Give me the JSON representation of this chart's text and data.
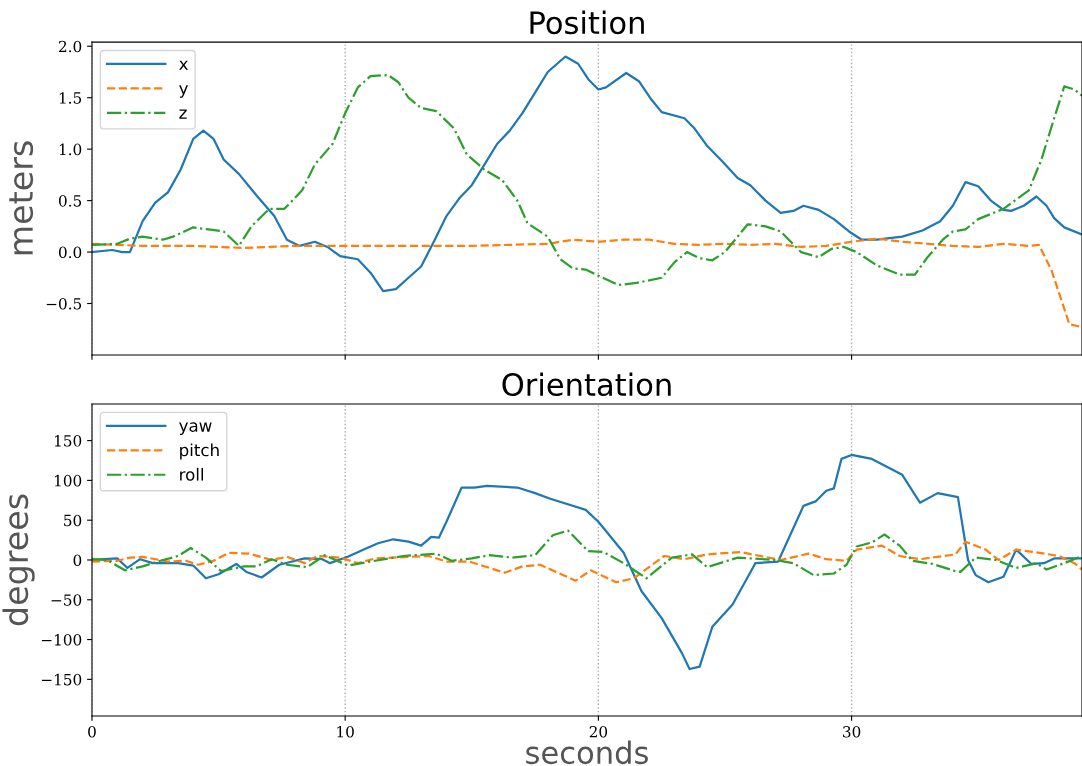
{
  "chart_data": [
    {
      "type": "line",
      "title": "Position",
      "ylabel": "meters",
      "xlim": [
        0,
        39.1
      ],
      "xticks": [
        0,
        10,
        20,
        30
      ],
      "ylim": [
        -1.0,
        2.04
      ],
      "yticks": [
        {
          "value": -0.5,
          "label": "−0.5"
        },
        {
          "value": 0,
          "label": "0.0"
        },
        {
          "value": 0.5,
          "label": "0.5"
        },
        {
          "value": 1,
          "label": "1.0"
        },
        {
          "value": 1.5,
          "label": "1.5"
        },
        {
          "value": 2,
          "label": "2.0"
        }
      ],
      "tick_labels": "y",
      "grid": "x",
      "legend": "top left",
      "marker": "none",
      "series": [
        {
          "name": "x",
          "color": "#1f77b4",
          "line_style": "solid",
          "x": [
            0,
            0.8,
            1.2,
            1.5,
            2,
            2.5,
            3,
            3.5,
            4,
            4.4,
            4.8,
            5.2,
            5.8,
            6.5,
            7.2,
            7.7,
            8.2,
            8.8,
            9.3,
            9.8,
            10.5,
            11,
            11.5,
            12,
            12.5,
            13,
            13.5,
            14,
            14.5,
            15,
            15.5,
            16,
            16.5,
            17,
            17.5,
            18,
            18.7,
            19.2,
            19.6,
            20,
            20.3,
            21.1,
            21.6,
            22.1,
            22.5,
            23.4,
            23.8,
            24.3,
            24.9,
            25.5,
            26,
            26.6,
            27.2,
            27.7,
            28.1,
            28.7,
            29.3,
            29.9,
            30.4,
            31,
            32,
            32.8,
            33.5,
            34,
            34.5,
            35,
            35.5,
            36,
            36.3,
            36.8,
            37.3,
            37.7,
            38,
            38.4,
            39.1
          ],
          "values": [
            0.0,
            0.02,
            0.0,
            0.0,
            0.3,
            0.48,
            0.58,
            0.8,
            1.1,
            1.18,
            1.1,
            0.9,
            0.76,
            0.55,
            0.35,
            0.12,
            0.06,
            0.1,
            0.05,
            -0.04,
            -0.07,
            -0.2,
            -0.38,
            -0.36,
            -0.25,
            -0.14,
            0.1,
            0.35,
            0.52,
            0.65,
            0.85,
            1.05,
            1.18,
            1.35,
            1.55,
            1.75,
            1.9,
            1.83,
            1.68,
            1.58,
            1.6,
            1.74,
            1.66,
            1.48,
            1.36,
            1.3,
            1.2,
            1.03,
            0.88,
            0.72,
            0.65,
            0.5,
            0.38,
            0.4,
            0.45,
            0.41,
            0.32,
            0.2,
            0.12,
            0.12,
            0.15,
            0.21,
            0.3,
            0.45,
            0.68,
            0.64,
            0.5,
            0.41,
            0.4,
            0.45,
            0.54,
            0.45,
            0.33,
            0.24,
            0.17
          ]
        },
        {
          "name": "y",
          "color": "#ff7f0e",
          "line_style": "dashed",
          "x": [
            0,
            1,
            2,
            4,
            5,
            6,
            8,
            12,
            15,
            18,
            19,
            20,
            21,
            22,
            23,
            24,
            25,
            26,
            27,
            28,
            29,
            30,
            31,
            32,
            33,
            34,
            35,
            36,
            37,
            37.4,
            37.9,
            38.6,
            39.1
          ],
          "values": [
            0.08,
            0.07,
            0.06,
            0.06,
            0.05,
            0.04,
            0.06,
            0.06,
            0.06,
            0.08,
            0.12,
            0.1,
            0.12,
            0.12,
            0.08,
            0.07,
            0.08,
            0.07,
            0.08,
            0.05,
            0.06,
            0.1,
            0.13,
            0.1,
            0.08,
            0.06,
            0.05,
            0.08,
            0.06,
            0.07,
            -0.18,
            -0.7,
            -0.73
          ]
        },
        {
          "name": "z",
          "color": "#2ca02c",
          "line_style": "dashdot",
          "x": [
            0,
            1,
            1.5,
            2,
            2.8,
            3.2,
            4,
            4.6,
            5.2,
            5.8,
            6.3,
            7,
            7.6,
            8.3,
            8.8,
            9.5,
            10,
            10.5,
            11,
            11.7,
            12.1,
            12.5,
            13,
            13.6,
            14.3,
            14.8,
            15.5,
            16.2,
            16.8,
            17.2,
            18,
            18.5,
            19,
            19.5,
            20,
            20.8,
            21.5,
            22.5,
            23,
            23.5,
            24,
            24.5,
            25,
            25.9,
            26.6,
            27.2,
            27.6,
            28,
            28.7,
            29.2,
            29.7,
            30.2,
            31,
            31.9,
            32.5,
            33,
            33.6,
            34,
            34.5,
            35,
            36,
            37,
            37.5,
            38,
            38.4,
            38.8,
            39.1
          ],
          "values": [
            0.07,
            0.08,
            0.13,
            0.15,
            0.12,
            0.15,
            0.24,
            0.22,
            0.2,
            0.06,
            0.25,
            0.42,
            0.42,
            0.6,
            0.85,
            1.05,
            1.35,
            1.6,
            1.71,
            1.72,
            1.65,
            1.5,
            1.4,
            1.37,
            1.2,
            0.95,
            0.8,
            0.7,
            0.5,
            0.28,
            0.15,
            -0.07,
            -0.16,
            -0.17,
            -0.23,
            -0.32,
            -0.3,
            -0.25,
            -0.1,
            0.0,
            -0.06,
            -0.08,
            0.0,
            0.27,
            0.25,
            0.2,
            0.1,
            0.0,
            -0.05,
            0.03,
            0.05,
            0.0,
            -0.13,
            -0.22,
            -0.22,
            -0.05,
            0.12,
            0.2,
            0.22,
            0.32,
            0.42,
            0.6,
            0.9,
            1.3,
            1.61,
            1.58,
            1.52
          ]
        }
      ]
    },
    {
      "type": "line",
      "title": "Orientation",
      "ylabel": "degrees",
      "xlabel": "seconds",
      "xlim": [
        0,
        39.1
      ],
      "xticks": [
        0,
        10,
        20,
        30
      ],
      "ylim": [
        -196,
        196
      ],
      "yticks": [
        -150,
        -100,
        -50,
        0,
        50,
        100,
        150
      ],
      "grid": "x",
      "legend": "top left",
      "marker": "none",
      "series": [
        {
          "name": "yaw",
          "color": "#1f77b4",
          "line_style": "solid",
          "x": [
            0,
            1.0,
            1.4,
            1.9,
            2.4,
            3.4,
            4.0,
            4.5,
            5.0,
            5.7,
            6.1,
            6.7,
            7.4,
            8.4,
            9.1,
            9.4,
            10.1,
            10.8,
            11.3,
            11.9,
            12.5,
            13.0,
            13.4,
            13.7,
            14.0,
            14.6,
            15.1,
            15.6,
            16.8,
            17.5,
            18.1,
            19.5,
            20.0,
            21.0,
            21.7,
            22.5,
            23.3,
            23.6,
            24.0,
            24.5,
            25.3,
            26.2,
            27.1,
            28.1,
            28.6,
            29.0,
            29.3,
            29.6,
            30.0,
            30.8,
            32.0,
            32.7,
            33.4,
            34.2,
            34.6,
            34.9,
            35.4,
            36.0,
            36.5,
            37.1,
            37.6,
            38.0,
            39.1
          ],
          "values": [
            0,
            2,
            -10,
            1,
            -4,
            -4,
            -7,
            -23,
            -18,
            -5,
            -15,
            -22,
            -6,
            2,
            1,
            -4,
            4,
            14,
            21,
            26,
            23,
            18,
            29,
            28,
            48,
            91,
            91,
            93,
            91,
            84,
            77,
            63,
            48,
            9,
            -39,
            -73,
            -117,
            -137,
            -134,
            -84,
            -56,
            -4,
            -2,
            68,
            74,
            87,
            90,
            127,
            132,
            127,
            107,
            72,
            84,
            79,
            0,
            -19,
            -28,
            -21,
            13,
            -5,
            -4,
            2,
            2
          ]
        },
        {
          "name": "pitch",
          "color": "#ff7f0e",
          "line_style": "dashed",
          "x": [
            0,
            1.0,
            1.5,
            2.0,
            3.0,
            3.7,
            4.2,
            4.8,
            5.4,
            6.2,
            7.1,
            7.7,
            8.4,
            8.9,
            9.8,
            10.5,
            11.2,
            13.3,
            14.0,
            14.9,
            16.3,
            17.0,
            17.7,
            19.1,
            19.7,
            20.7,
            21.4,
            22.6,
            23.4,
            24.3,
            25.6,
            27.2,
            28.3,
            29.0,
            29.8,
            30.2,
            31.2,
            31.9,
            32.7,
            34.1,
            34.5,
            35.3,
            35.8,
            36.5,
            37.2,
            38.2,
            38.8,
            39.1
          ],
          "values": [
            -2,
            -1,
            3,
            4,
            -2,
            -1,
            -6,
            -1,
            9,
            8,
            0,
            4,
            -4,
            5,
            3,
            -4,
            2,
            5,
            -2,
            -2,
            -16,
            -8,
            -6,
            -26,
            -13,
            -28,
            -23,
            5,
            1,
            7,
            10,
            0,
            8,
            1,
            -1,
            13,
            18,
            5,
            1,
            7,
            23,
            13,
            0,
            13,
            10,
            5,
            -4,
            -12
          ]
        },
        {
          "name": "roll",
          "color": "#2ca02c",
          "line_style": "dashdot",
          "x": [
            0,
            0.6,
            1.3,
            2.0,
            2.7,
            3.4,
            3.9,
            4.5,
            5.1,
            6.0,
            6.5,
            7.1,
            7.7,
            8.5,
            9.2,
            10.1,
            10.8,
            12.3,
            13.6,
            14.2,
            15.0,
            15.7,
            16.6,
            17.5,
            18.2,
            18.8,
            19.6,
            20.2,
            21.0,
            21.9,
            22.9,
            23.7,
            24.3,
            25.5,
            27.0,
            27.7,
            28.5,
            29.3,
            29.8,
            30.2,
            30.8,
            31.3,
            31.9,
            32.4,
            33.2,
            34.1,
            34.3,
            34.9,
            35.7,
            36.5,
            37.3,
            37.7,
            38.4,
            39.1
          ],
          "values": [
            1,
            0,
            -13,
            -8,
            -1,
            5,
            15,
            3,
            -14,
            -8,
            -8,
            1,
            -6,
            -9,
            6,
            -7,
            -3,
            5,
            8,
            -1,
            2,
            6,
            3,
            6,
            31,
            37,
            11,
            10,
            -4,
            -23,
            3,
            7,
            -9,
            3,
            0,
            -4,
            -19,
            -17,
            -6,
            17,
            22,
            32,
            18,
            -1,
            -5,
            -14,
            -15,
            3,
            0,
            -10,
            -4,
            -12,
            -4,
            5
          ]
        }
      ]
    }
  ]
}
